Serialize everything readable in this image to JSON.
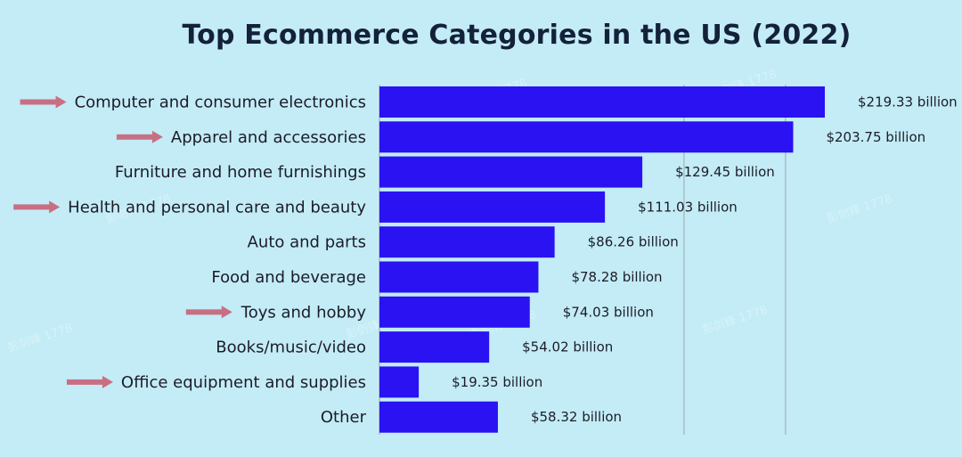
{
  "chart_data": {
    "type": "bar",
    "orientation": "horizontal",
    "title": "Top Ecommerce Categories in the US (2022)",
    "xlabel": "",
    "ylabel": "",
    "xlim": [
      0,
      240
    ],
    "grid": true,
    "value_suffix": " billion",
    "value_prefix": "$",
    "categories": [
      "Computer and consumer electronics",
      "Apparel and accessories",
      "Furniture and home furnishings",
      "Health and personal care and beauty",
      "Auto and parts",
      "Food and beverage",
      "Toys and hobby",
      "Books/music/video",
      "Office equipment and supplies",
      "Other"
    ],
    "values": [
      219.33,
      203.75,
      129.45,
      111.03,
      86.26,
      78.28,
      74.03,
      54.02,
      19.35,
      58.32
    ],
    "value_labels": [
      "$219.33 billion",
      "$203.75 billion",
      "$129.45 billion",
      "$111.03 billion",
      "$86.26 billion",
      "$78.28 billion",
      "$74.03 billion",
      "$54.02 billion",
      "$19.35 billion",
      "$58.32 billion"
    ],
    "highlighted": [
      true,
      true,
      false,
      true,
      false,
      false,
      true,
      false,
      true,
      false
    ]
  },
  "colors": {
    "background": "#c3ecf6",
    "bar": "#2a12f2",
    "arrow": "#c96f84",
    "text": "#1c1c28"
  },
  "watermark": "彭剑锋 1778"
}
